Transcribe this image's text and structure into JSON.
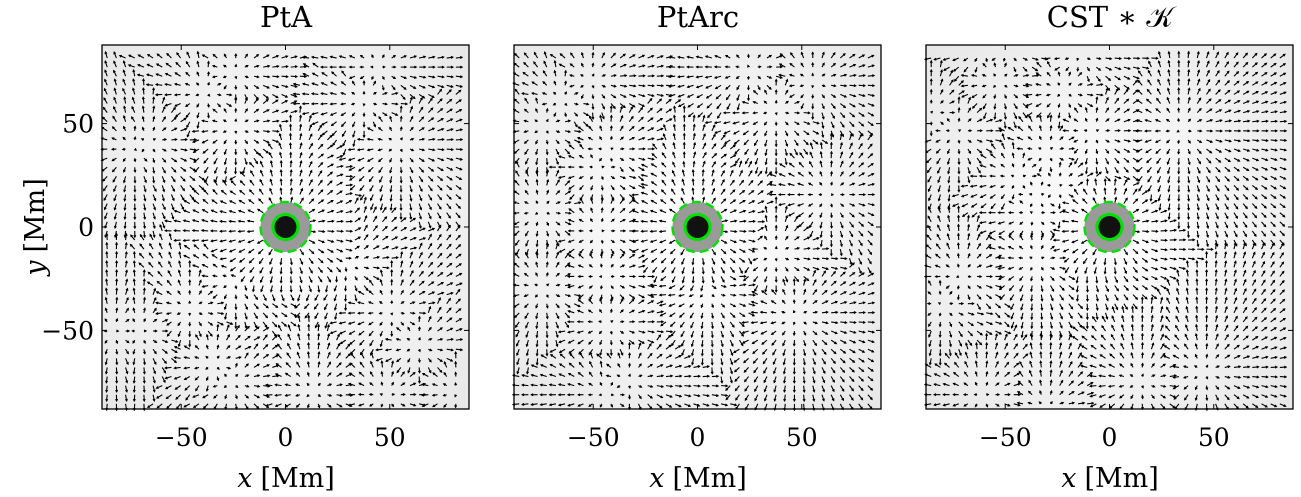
{
  "chart_data": [
    {
      "type": "quiver",
      "title": "PtA",
      "xlabel_var": "x",
      "xlabel_unit": "[Mm]",
      "ylabel_var": "y",
      "ylabel_unit": "[Mm]",
      "xlim": [
        -88,
        88
      ],
      "ylim": [
        -88,
        88
      ],
      "xticks": [
        -50,
        0,
        50
      ],
      "xtick_labels": [
        "-50",
        "0",
        "50"
      ],
      "yticks": [
        50,
        0,
        -50
      ],
      "ytick_labels": [
        "50",
        "0",
        "-50"
      ],
      "center": [
        0,
        0
      ],
      "umbra_radius": 5,
      "penumbra_radius": 12,
      "moat_radius": 30,
      "grid": false
    },
    {
      "type": "quiver",
      "title": "PtArc",
      "xlabel_var": "x",
      "xlabel_unit": "[Mm]",
      "xlim": [
        -88,
        88
      ],
      "ylim": [
        -88,
        88
      ],
      "xticks": [
        -50,
        0,
        50
      ],
      "xtick_labels": [
        "-50",
        "0",
        "50"
      ],
      "center": [
        0,
        0
      ],
      "umbra_radius": 5,
      "penumbra_radius": 12,
      "moat_radius": 26,
      "grid": false
    },
    {
      "type": "quiver",
      "title": "CST ∗ 𝒦",
      "xlabel_var": "x",
      "xlabel_unit": "[Mm]",
      "xlim": [
        -88,
        88
      ],
      "ylim": [
        -88,
        88
      ],
      "xticks": [
        -50,
        0,
        50
      ],
      "xtick_labels": [
        "-50",
        "0",
        "50"
      ],
      "center": [
        0,
        0
      ],
      "umbra_radius": 5,
      "penumbra_radius": 12,
      "moat_radius": 20,
      "grid": false
    }
  ],
  "colors": {
    "arrows": "#000000",
    "background_light": "#f4f4f4",
    "background_dark": "#e2e2e2",
    "penumbra": "#9a9a9a",
    "umbra": "#111111",
    "contour": "#00e000"
  }
}
